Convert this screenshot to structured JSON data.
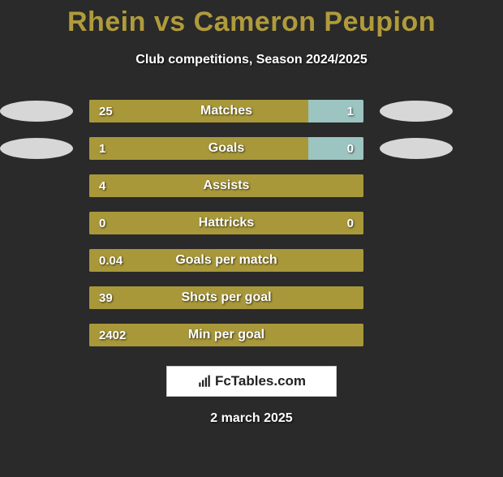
{
  "title": "Rhein vs Cameron Peupion",
  "subtitle": "Club competitions, Season 2024/2025",
  "date": "2 march 2025",
  "brand": "FcTables.com",
  "colors": {
    "background": "#2a2a2a",
    "title": "#b09b3c",
    "bar_left": "#a8983a",
    "bar_right": "#9cc4c0",
    "badge_left": "#eaeaea",
    "badge_right": "#eaeaea",
    "text": "#ffffff"
  },
  "rows": [
    {
      "label": "Matches",
      "left_val": "25",
      "right_val": "1",
      "left_pct": 80,
      "right_pct": 20,
      "show_badges": true,
      "show_right_val": true
    },
    {
      "label": "Goals",
      "left_val": "1",
      "right_val": "0",
      "left_pct": 80,
      "right_pct": 20,
      "show_badges": true,
      "show_right_val": true
    },
    {
      "label": "Assists",
      "left_val": "4",
      "right_val": "",
      "left_pct": 100,
      "right_pct": 0,
      "show_badges": false,
      "show_right_val": false
    },
    {
      "label": "Hattricks",
      "left_val": "0",
      "right_val": "0",
      "left_pct": 100,
      "right_pct": 0,
      "show_badges": false,
      "show_right_val": true
    },
    {
      "label": "Goals per match",
      "left_val": "0.04",
      "right_val": "",
      "left_pct": 100,
      "right_pct": 0,
      "show_badges": false,
      "show_right_val": false
    },
    {
      "label": "Shots per goal",
      "left_val": "39",
      "right_val": "",
      "left_pct": 100,
      "right_pct": 0,
      "show_badges": false,
      "show_right_val": false
    },
    {
      "label": "Min per goal",
      "left_val": "2402",
      "right_val": "",
      "left_pct": 100,
      "right_pct": 0,
      "show_badges": false,
      "show_right_val": false
    }
  ]
}
